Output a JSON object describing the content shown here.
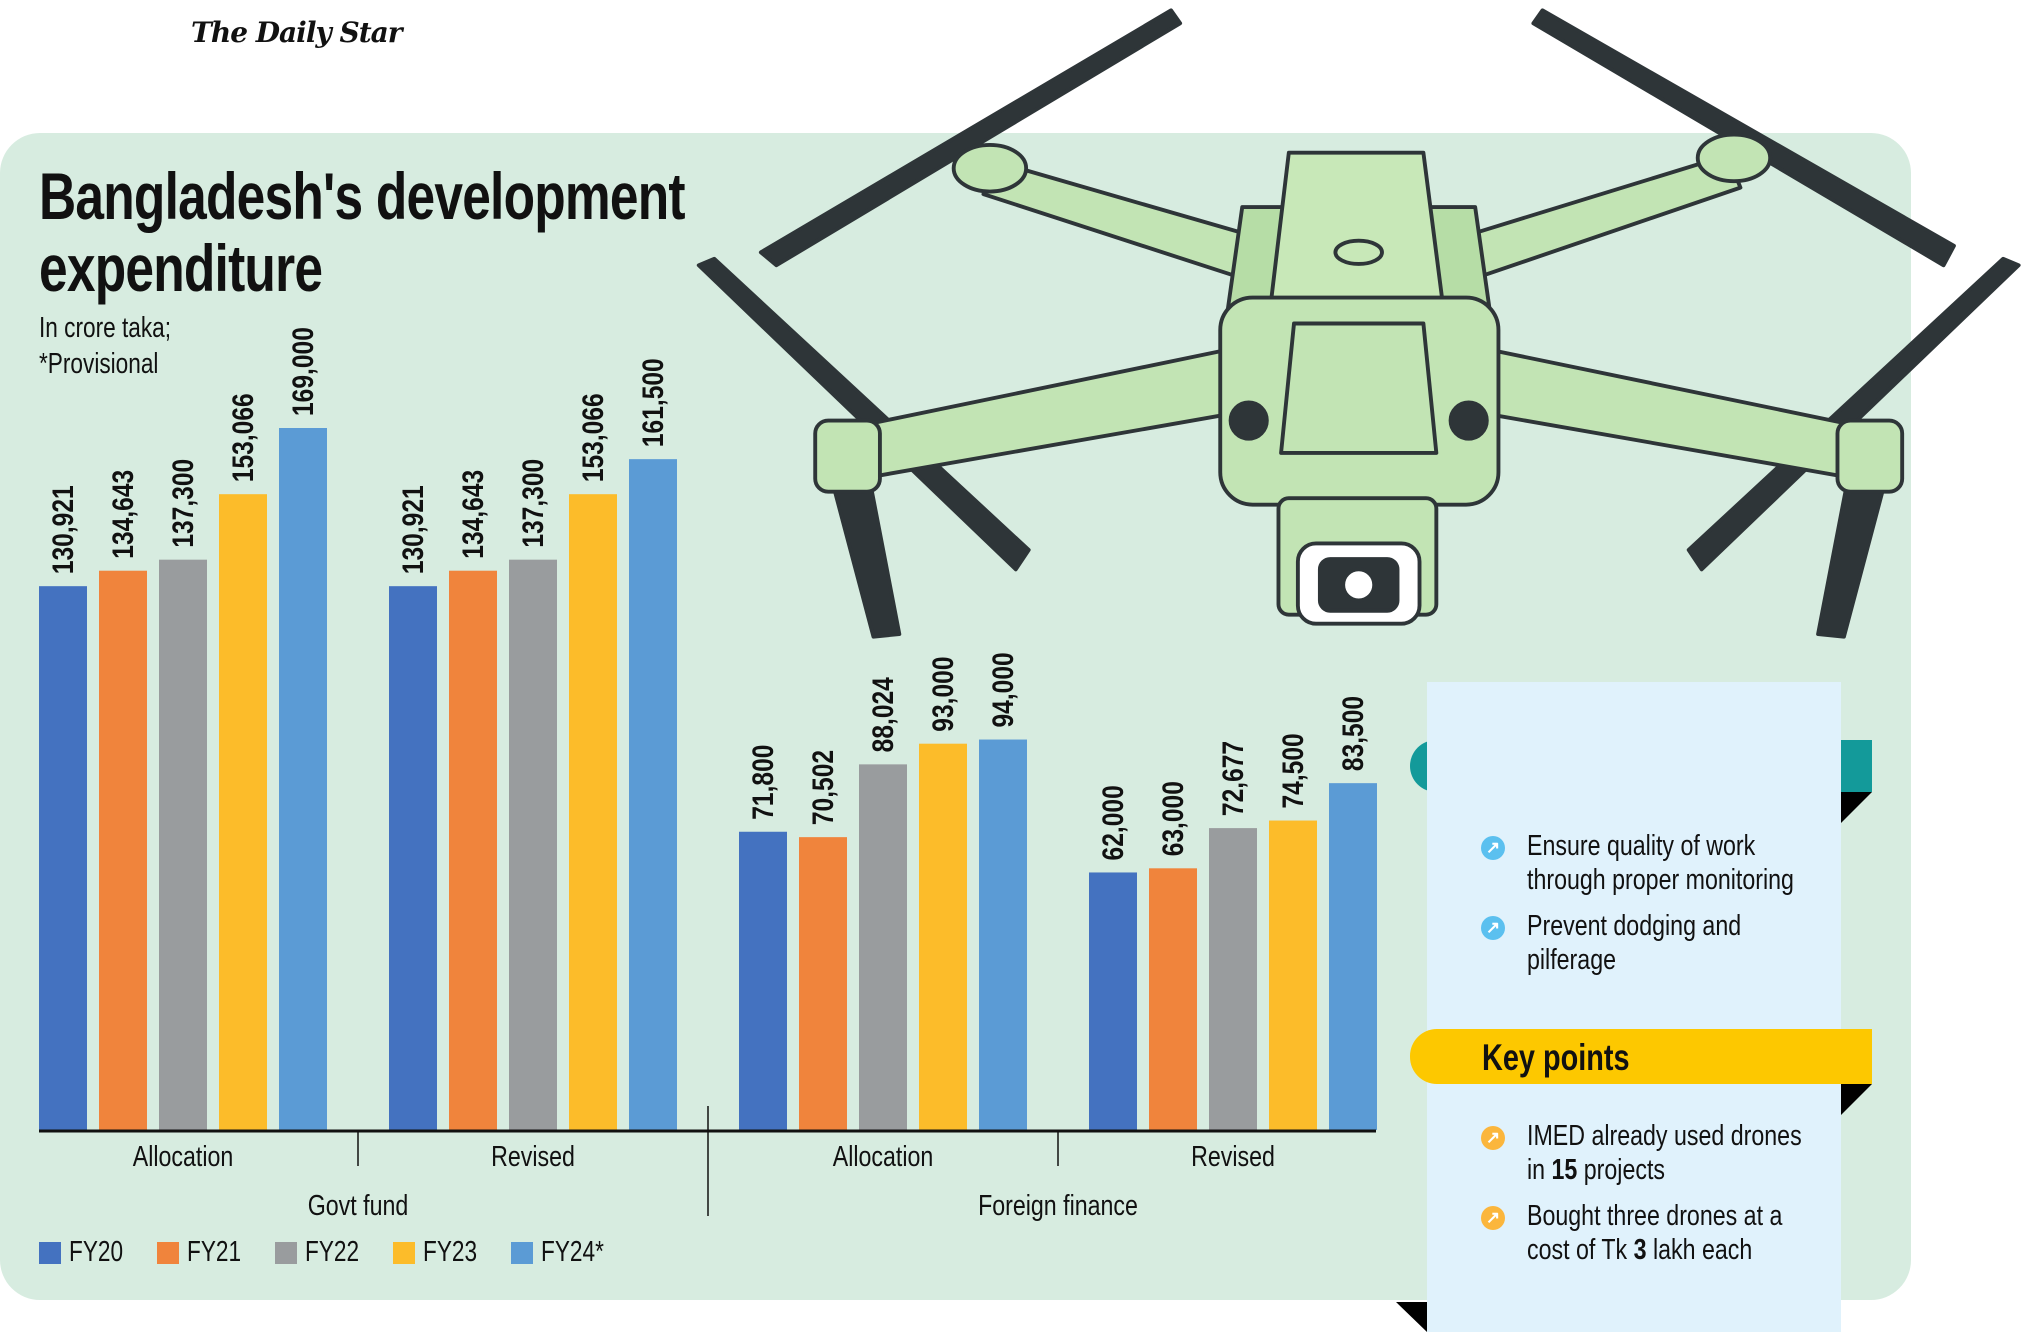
{
  "logo": "The Daily Star",
  "title_line1": "Bangladesh's development",
  "title_line2": "expenditure",
  "subtitle_line1": "In crore taka;",
  "subtitle_line2": "*Provisional",
  "colors": {
    "FY20": "#4472c0",
    "FY21": "#f0843c",
    "FY22": "#999c9e",
    "FY23": "#fcbc2a",
    "FY24*": "#5b9bd5",
    "panel": "#d7ece0",
    "teal": "#139a9a",
    "yellow": "#fdc800",
    "box": "#e0f2fc"
  },
  "chart_data": {
    "type": "bar",
    "title": "Bangladesh's development expenditure",
    "ylabel": "In crore taka",
    "ylim": [
      0,
      169000
    ],
    "grid": false,
    "legend_position": "bottom-left",
    "series_names": [
      "FY20",
      "FY21",
      "FY22",
      "FY23",
      "FY24*"
    ],
    "groups": [
      {
        "section": "Govt fund",
        "category": "Allocation",
        "values": [
          130921,
          134643,
          137300,
          153066,
          169000
        ],
        "labels": [
          "130,921",
          "134,643",
          "137,300",
          "153,066",
          "169,000"
        ]
      },
      {
        "section": "Govt fund",
        "category": "Revised",
        "values": [
          130921,
          134643,
          137300,
          153066,
          161500
        ],
        "labels": [
          "130,921",
          "134,643",
          "137,300",
          "153,066",
          "161,500"
        ]
      },
      {
        "section": "Foreign finance",
        "category": "Allocation",
        "values": [
          71800,
          70502,
          88024,
          93000,
          94000
        ],
        "labels": [
          "71,800",
          "70,502",
          "88,024",
          "93,000",
          "94,000"
        ]
      },
      {
        "section": "Foreign finance",
        "category": "Revised",
        "values": [
          62000,
          63000,
          72677,
          74500,
          83500
        ],
        "labels": [
          "62,000",
          "63,000",
          "72,677",
          "74,500",
          "83,500"
        ]
      }
    ],
    "sections": [
      "Govt fund",
      "Foreign finance"
    ]
  },
  "recommendations": [
    "Ensure quality of work",
    "through proper monitoring",
    "Prevent dodging and",
    "pilferage"
  ],
  "key_points_title": "Key points",
  "key_points": {
    "p1_line1": "IMED already used drones",
    "p1_line2_pre": "in ",
    "p1_line2_bold": "15",
    "p1_line2_post": " projects",
    "p2_line1": "Bought three drones at a",
    "p2_line2_pre": "cost of Tk ",
    "p2_line2_bold": "3",
    "p2_line2_post": " lakh each"
  }
}
